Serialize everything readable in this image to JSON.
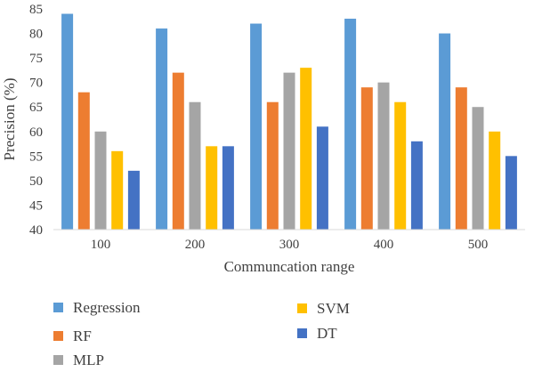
{
  "chart_data": {
    "type": "bar",
    "categories": [
      "100",
      "200",
      "300",
      "400",
      "500"
    ],
    "series": [
      {
        "name": "Regression",
        "color": "#5B9BD5",
        "values": [
          84,
          81,
          82,
          83,
          80
        ]
      },
      {
        "name": "RF",
        "color": "#ED7D31",
        "values": [
          68,
          72,
          66,
          69,
          69
        ]
      },
      {
        "name": "MLP",
        "color": "#A5A5A5",
        "values": [
          60,
          66,
          72,
          70,
          65
        ]
      },
      {
        "name": "SVM",
        "color": "#FFC000",
        "values": [
          56,
          57,
          73,
          66,
          60
        ]
      },
      {
        "name": "DT",
        "color": "#4472C4",
        "values": [
          52,
          57,
          61,
          58,
          55
        ]
      }
    ],
    "xlabel": "Communcation range",
    "ylabel": "Precision (%)",
    "ylim": [
      40,
      85
    ],
    "yticks": [
      "40",
      "45",
      "50",
      "55",
      "60",
      "65",
      "70",
      "75",
      "80",
      "85"
    ],
    "grid": false,
    "legend_position": "bottom"
  }
}
